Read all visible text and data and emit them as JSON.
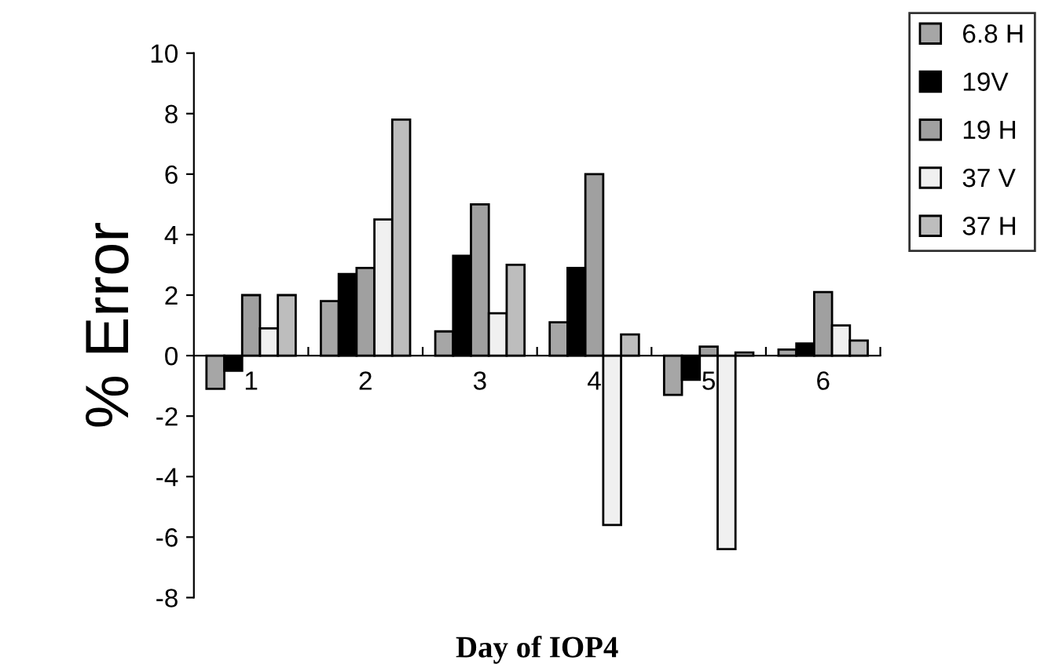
{
  "chart_data": {
    "type": "bar",
    "xlabel": "Day of IOP4",
    "ylabel": "% Error",
    "categories": [
      "1",
      "2",
      "3",
      "4",
      "5",
      "6"
    ],
    "series": [
      {
        "name": "6.8 H",
        "color": "#a6a6a6",
        "values": [
          -1.1,
          1.8,
          0.8,
          1.1,
          -1.3,
          0.2
        ]
      },
      {
        "name": "19V",
        "color": "#000000",
        "values": [
          -0.5,
          2.7,
          3.3,
          2.9,
          -0.8,
          0.4
        ]
      },
      {
        "name": "19 H",
        "color": "#a0a0a0",
        "values": [
          2.0,
          2.9,
          5.0,
          6.0,
          0.3,
          2.1
        ]
      },
      {
        "name": "37 V",
        "color": "#f0f0f0",
        "values": [
          0.9,
          4.5,
          1.4,
          -5.6,
          -6.4,
          1.0
        ]
      },
      {
        "name": "37 H",
        "color": "#bdbdbd",
        "values": [
          2.0,
          7.8,
          3.0,
          0.7,
          0.1,
          0.5
        ]
      }
    ],
    "ylim": [
      -8,
      10
    ],
    "yticks": [
      -8,
      -6,
      -4,
      -2,
      0,
      2,
      4,
      6,
      8,
      10
    ],
    "grid": false,
    "legend": "top right"
  }
}
